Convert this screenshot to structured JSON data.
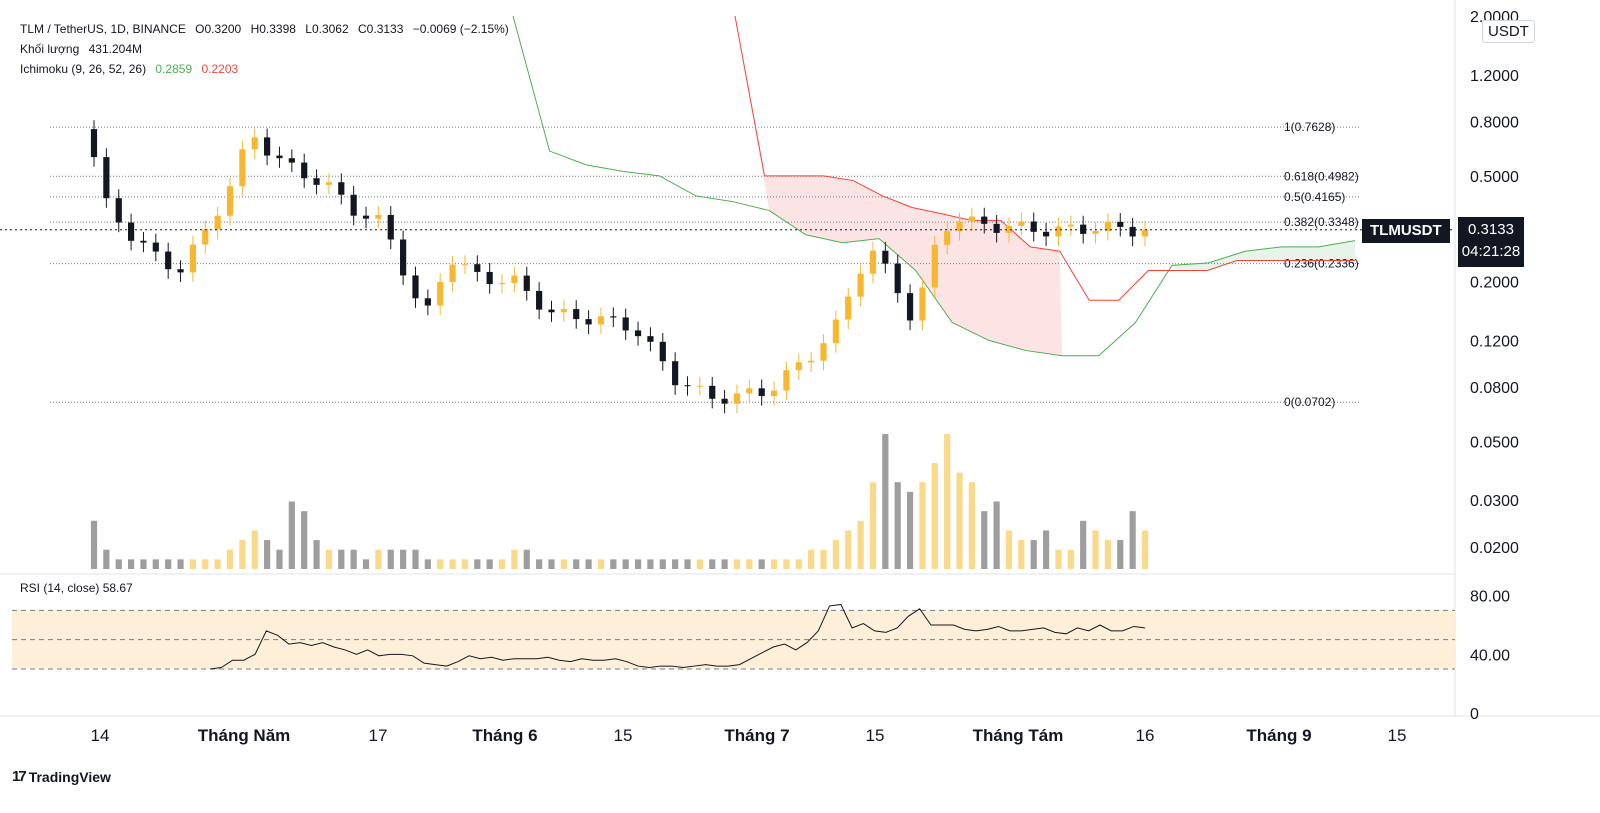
{
  "header": {
    "symbol_line": "TLM / TetherUS, 1D, BINANCE",
    "open": "O0.3200",
    "high": "H0.3398",
    "low": "L0.3062",
    "close": "C0.3133",
    "change": "−0.0069 (−2.15%)",
    "volume_label": "Khối lượng",
    "volume_value": "431.204M",
    "ichimoku_label": "Ichimoku (9, 26, 52, 26)",
    "ichimoku_a": "0.2859",
    "ichimoku_b": "0.2203"
  },
  "currency_button": "USDT",
  "symbol_tag": "TLMUSDT",
  "price_tag": {
    "price": "0.3133",
    "countdown": "04:21:28"
  },
  "rsi_label": "RSI (14, close) 58.67",
  "branding": "TradingView",
  "colors": {
    "up": "#f7b731",
    "down": "#131722",
    "vol_up": "#fbd98b",
    "vol_down": "#9e9e9e",
    "ichi_green": "#4caf50",
    "ichi_red": "#f44336",
    "cloud_red": "#fde4e4",
    "cloud_green": "#e6f4ea",
    "rsi_band": "#fde9c7"
  },
  "chart_data": [
    {
      "type": "candlestick",
      "title": "TLM / TetherUS, 1D, BINANCE",
      "y_scale": "log",
      "y_ticks": [
        "2.0000",
        "1.2000",
        "0.8000",
        "0.5000",
        "0.3000",
        "0.2000",
        "0.1200",
        "0.0800",
        "0.0500",
        "0.0300",
        "0.0200"
      ],
      "x_ticks": [
        "14",
        "Tháng Năm",
        "17",
        "Tháng 6",
        "15",
        "Tháng 7",
        "15",
        "Tháng Tám",
        "16",
        "Tháng 9",
        "15"
      ],
      "fib_levels": [
        {
          "label": "1(0.7628)",
          "value": 0.7628
        },
        {
          "label": "0.618(0.4982)",
          "value": 0.4982
        },
        {
          "label": "0.5(0.4165)",
          "value": 0.4165
        },
        {
          "label": "0.382(0.3348)",
          "value": 0.3348
        },
        {
          "label": "0.236(0.2336)",
          "value": 0.2336
        },
        {
          "label": "0(0.0702)",
          "value": 0.0702
        }
      ],
      "ichimoku_span_a": [
        2.0,
        0.62,
        0.55,
        0.52,
        0.5,
        0.42,
        0.4,
        0.37,
        0.3,
        0.28,
        0.29,
        0.22,
        0.14,
        0.12,
        0.11,
        0.105,
        0.105,
        0.14,
        0.23,
        0.235,
        0.26,
        0.27,
        0.27,
        0.285
      ],
      "ichimoku_span_b": [
        2.0,
        0.5,
        0.5,
        0.5,
        0.48,
        0.42,
        0.38,
        0.36,
        0.34,
        0.34,
        0.27,
        0.26,
        0.17,
        0.17,
        0.22,
        0.22,
        0.22,
        0.24,
        0.24,
        0.24,
        0.24,
        0.24
      ],
      "volume_series": [
        5,
        2,
        1,
        1,
        1,
        1,
        1,
        1,
        1,
        1,
        1,
        2,
        3,
        4,
        3,
        2,
        7,
        6,
        3,
        2,
        2,
        2,
        1,
        2,
        2,
        2,
        2,
        1,
        1,
        1,
        1,
        1,
        1,
        1,
        2,
        2,
        1,
        1,
        1,
        1,
        1,
        1,
        1,
        1,
        1,
        1,
        1,
        1,
        1,
        1,
        1,
        1,
        1,
        1,
        1,
        1,
        1,
        1,
        2,
        2,
        3,
        4,
        5,
        9,
        14,
        9,
        8,
        9,
        11,
        14,
        10,
        9,
        6,
        7,
        4,
        3,
        3,
        4,
        2,
        2,
        5,
        4,
        3,
        3,
        6,
        4
      ],
      "last_price": 0.3133
    },
    {
      "type": "line",
      "title": "RSI (14, close)",
      "y_ticks": [
        "80.00",
        "40.00",
        "0"
      ],
      "bands": [
        30,
        50,
        70
      ],
      "values": [
        30,
        31,
        36,
        36,
        40,
        56,
        53,
        47,
        48,
        46,
        48,
        45,
        43,
        40,
        43,
        39,
        40,
        40,
        39,
        34,
        33,
        32,
        35,
        39,
        37,
        38,
        36,
        37,
        37,
        37,
        38,
        36,
        35,
        37,
        36,
        36,
        37,
        35,
        32,
        31,
        32,
        32,
        31,
        32,
        33,
        32,
        32,
        33,
        37,
        41,
        45,
        47,
        43,
        48,
        56,
        73,
        74,
        58,
        61,
        56,
        55,
        58,
        66,
        71,
        60,
        60,
        60,
        57,
        56,
        57,
        59,
        56,
        56,
        57,
        58,
        55,
        54,
        58,
        56,
        60,
        56,
        56,
        59,
        58
      ],
      "last_value": 58.67
    }
  ]
}
